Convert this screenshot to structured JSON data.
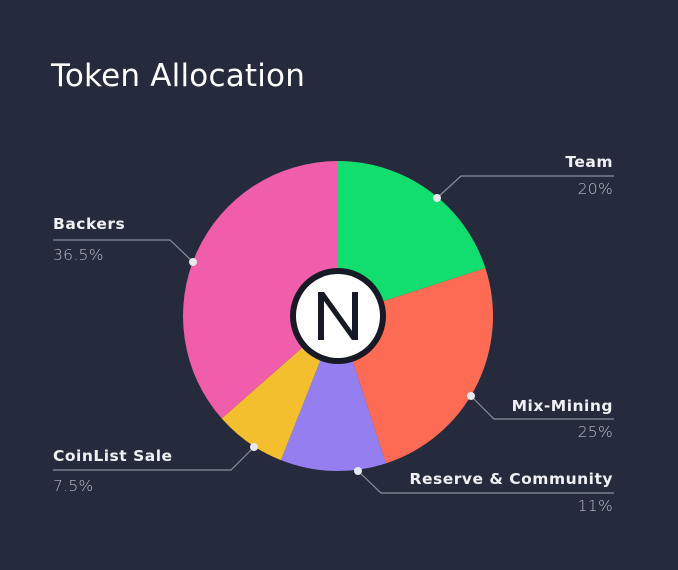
{
  "header": {
    "title": "Token Allocation"
  },
  "colors": {
    "background": "#252b3c",
    "leader_line": "#8a8f9c",
    "dot": "#e6e8ee"
  },
  "chart_data": {
    "type": "pie",
    "title": "Token Allocation",
    "categories": [
      "Team",
      "Mix-Mining",
      "Reserve & Community",
      "CoinList Sale",
      "Backers"
    ],
    "values": [
      20,
      25,
      11,
      7.5,
      36.5
    ],
    "labels": [
      "20%",
      "25%",
      "11%",
      "7.5%",
      "36.5%"
    ],
    "colors": [
      "#12dd6f",
      "#fe6b55",
      "#957ff0",
      "#f4bf2e",
      "#f05dab"
    ],
    "start_angle": "12 o'clock",
    "direction": "clockwise",
    "center_logo": "N"
  },
  "slices": [
    {
      "name": "Team",
      "pct": "20%"
    },
    {
      "name": "Mix-Mining",
      "pct": "25%"
    },
    {
      "name": "Reserve & Community",
      "pct": "11%"
    },
    {
      "name": "CoinList Sale",
      "pct": "7.5%"
    },
    {
      "name": "Backers",
      "pct": "36.5%"
    }
  ],
  "logo": {
    "letter": "N",
    "icon": "nym-logo-icon"
  }
}
